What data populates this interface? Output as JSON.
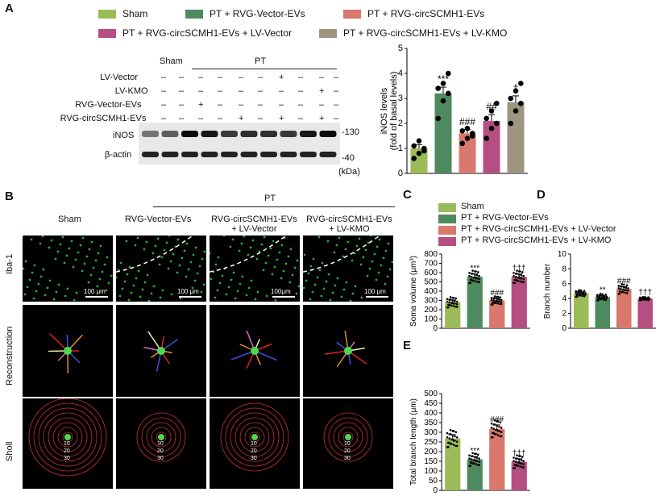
{
  "panels": {
    "A": "A",
    "B": "B",
    "C": "C",
    "D": "D",
    "E": "E"
  },
  "legend_a": [
    {
      "label": "Sham",
      "color": "#9bbb59"
    },
    {
      "label": "PT + RVG-Vector-EVs",
      "color": "#4e8a5e"
    },
    {
      "label": "PT + RVG-circSCMH1-EVs",
      "color": "#d9786d"
    },
    {
      "label": "PT + RVG-circSCMH1-EVs + LV-Vector",
      "color": "#b54f82"
    },
    {
      "label": "PT + RVG-circSCMH1-EVs + LV-KMO",
      "color": "#9d9580"
    }
  ],
  "legend_c": [
    {
      "label": "Sham",
      "color": "#9bbb59"
    },
    {
      "label": "PT + RVG-Vector-EVs",
      "color": "#4e8a5e"
    },
    {
      "label": "PT + RVG-circSCMH1-EVs + LV-Vector",
      "color": "#d9786d"
    },
    {
      "label": "PT + RVG-circSCMH1-EVs + LV-KMO",
      "color": "#b54f82"
    }
  ],
  "blot": {
    "sham": "Sham",
    "pt": "PT",
    "rows": [
      {
        "name": "LV-Vector",
        "marks": [
          "–",
          "–",
          "–",
          "–",
          "–",
          "–",
          "+",
          "–",
          "–",
          "–"
        ]
      },
      {
        "name": "LV-KMO",
        "marks": [
          "–",
          "–",
          "–",
          "–",
          "–",
          "–",
          "–",
          "–",
          "+",
          "–"
        ]
      },
      {
        "name": "RVG-Vector-EVs",
        "marks": [
          "–",
          "–",
          "+",
          "–",
          "–",
          "–",
          "–",
          "–",
          "–",
          "–"
        ]
      },
      {
        "name": "RVG-circSCMH1-EVs",
        "marks": [
          "–",
          "–",
          "–",
          "–",
          "+",
          "–",
          "+",
          "–",
          "+",
          "–"
        ]
      }
    ],
    "band1": "iNOS",
    "band2": "β-actin",
    "mw1": "-130",
    "mw2": "-40",
    "unit": "(kDa)"
  },
  "micro": {
    "pt": "PT",
    "cols": [
      "Sham",
      "RVG-Vector-EVs",
      "RVG-circSCMH1-EVs\n+ LV-Vector",
      "RVG-circSCMH1-EVs\n+ LV-KMO"
    ],
    "rows": [
      "Iba-1",
      "Reconstruction",
      "Sholl"
    ],
    "scale": [
      "100 μm",
      "100 μm",
      "100μm",
      "100 μm"
    ],
    "sholl": [
      "10",
      "20",
      "30"
    ]
  },
  "chart_data": [
    {
      "type": "bar",
      "panel": "A",
      "categories": [
        "Sham",
        "PT + RVG-Vector-EVs",
        "PT + RVG-circSCMH1-EVs",
        "PT + RVG-circSCMH1-EVs + LV-Vector",
        "PT + RVG-circSCMH1-EVs + LV-KMO"
      ],
      "values": [
        1.0,
        3.2,
        1.6,
        2.1,
        2.85
      ],
      "errors": [
        0.15,
        0.25,
        0.15,
        0.25,
        0.25
      ],
      "points": [
        [
          0.6,
          0.8,
          1.0,
          1.1,
          1.3,
          0.9
        ],
        [
          2.2,
          2.9,
          3.2,
          3.4,
          3.6,
          4.0
        ],
        [
          1.2,
          1.4,
          1.6,
          1.7,
          1.8,
          1.5
        ],
        [
          1.4,
          1.8,
          2.0,
          2.2,
          2.5,
          2.8
        ],
        [
          2.0,
          2.5,
          2.8,
          3.0,
          3.3,
          3.6
        ]
      ],
      "annotations": [
        "",
        "***",
        "###",
        "##",
        "†"
      ],
      "ylabel": "iNOS levels (fold of basal levels)",
      "yticks": [
        0,
        1,
        2,
        3,
        4,
        5
      ],
      "ylim": [
        0,
        5
      ]
    },
    {
      "type": "bar",
      "panel": "C",
      "categories": [
        "Sham",
        "PT + RVG-Vector-EVs",
        "PT + RVG-circSCMH1-EVs + LV-Vector",
        "PT + RVG-circSCMH1-EVs + LV-KMO"
      ],
      "values": [
        280,
        555,
        300,
        555
      ],
      "errors": [
        25,
        30,
        20,
        30
      ],
      "annotations": [
        "",
        "***",
        "###",
        "†††"
      ],
      "ylabel": "Soma volume (μm³)",
      "yticks": [
        0,
        100,
        200,
        300,
        400,
        500,
        600,
        700,
        800
      ],
      "ylim": [
        0,
        800
      ]
    },
    {
      "type": "bar",
      "panel": "D",
      "categories": [
        "Sham",
        "PT + RVG-Vector-EVs",
        "PT + RVG-circSCMH1-EVs + LV-Vector",
        "PT + RVG-circSCMH1-EVs + LV-KMO"
      ],
      "values": [
        4.7,
        4.2,
        5.3,
        4.0
      ],
      "errors": [
        0.2,
        0.2,
        0.3,
        0.1
      ],
      "annotations": [
        "",
        "**",
        "###",
        "†††"
      ],
      "ylabel": "Branch number",
      "yticks": [
        0,
        2,
        4,
        6,
        8,
        10
      ],
      "ylim": [
        0,
        10
      ]
    },
    {
      "type": "bar",
      "panel": "E",
      "categories": [
        "Sham",
        "PT + RVG-Vector-EVs",
        "PT + RVG-circSCMH1-EVs + LV-Vector",
        "PT + RVG-circSCMH1-EVs + LV-KMO"
      ],
      "values": [
        268,
        160,
        318,
        148
      ],
      "errors": [
        20,
        15,
        20,
        15
      ],
      "annotations": [
        "",
        "***",
        "###",
        "†††"
      ],
      "ylabel": "Total branch length (μm)",
      "yticks": [
        0,
        50,
        100,
        150,
        200,
        250,
        300,
        350,
        400,
        450,
        500
      ],
      "ylim": [
        0,
        500
      ]
    }
  ]
}
